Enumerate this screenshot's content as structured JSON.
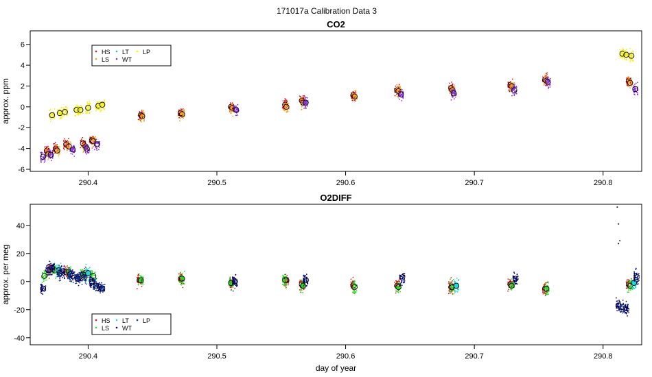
{
  "page": {
    "title": "171017a   Calibration Data 3"
  },
  "colors": {
    "HS": "#e01010",
    "LS": "#f5a020",
    "LT": "#22c2c2",
    "WT": "#8a2be2",
    "LP": "#f5f000",
    "o2_HS": "#e01010",
    "o2_LS": "#20e020",
    "o2_LT": "#22d8d8",
    "o2_WT": "#000080",
    "o2_LP": "#1030a0"
  },
  "chart_data": [
    {
      "type": "scatter",
      "title": "CO2",
      "xlabel": "",
      "ylabel": "approx. ppm",
      "xlim": [
        290.355,
        290.83
      ],
      "ylim": [
        -6.2,
        7.3
      ],
      "xticks": [
        290.4,
        290.5,
        290.6,
        290.7,
        290.8
      ],
      "xtick_labels": [
        "290.4",
        "290.5",
        "290.6",
        "290.7",
        "290.8"
      ],
      "yticks": [
        -6,
        -4,
        -2,
        0,
        2,
        4,
        6
      ],
      "ytick_labels": [
        "-6",
        "-4",
        "-2",
        "0",
        "2",
        "4",
        "6"
      ],
      "legend": {
        "placement": "top-left",
        "entries": [
          "HS",
          "LS",
          "LT",
          "WT",
          "LP"
        ]
      },
      "cloud_spread": 0.35,
      "series": [
        {
          "name": "HS",
          "x": [
            290.368,
            290.375,
            290.383,
            290.396,
            290.403,
            290.441,
            290.472,
            290.511,
            290.553,
            290.566,
            290.606,
            290.64,
            290.682,
            290.728,
            290.755,
            290.82
          ],
          "y": [
            -4.2,
            -4.0,
            -3.6,
            -3.5,
            -3.2,
            -0.8,
            -0.6,
            0.0,
            0.2,
            0.6,
            1.1,
            1.6,
            1.8,
            2.1,
            2.6,
            2.5
          ]
        },
        {
          "name": "LS",
          "x": [
            290.369,
            290.376,
            290.385,
            290.398,
            290.404,
            290.442,
            290.473,
            290.512,
            290.554,
            290.567,
            290.607,
            290.641,
            290.683,
            290.729,
            290.756,
            290.821
          ],
          "y": [
            -4.5,
            -4.2,
            -3.8,
            -3.8,
            -3.3,
            -0.9,
            -0.7,
            -0.1,
            0.0,
            0.4,
            1.0,
            1.5,
            1.6,
            2.0,
            2.5,
            2.3
          ]
        },
        {
          "name": "WT",
          "x": [
            290.365,
            290.371,
            290.388,
            290.399,
            290.407,
            290.515,
            290.569,
            290.643,
            290.684,
            290.731,
            290.757,
            290.825
          ],
          "y": [
            -4.8,
            -4.6,
            -4.1,
            -4.0,
            -3.6,
            -0.3,
            0.4,
            1.2,
            1.3,
            1.6,
            2.4,
            1.7
          ]
        },
        {
          "name": "LP",
          "x": [
            290.372,
            290.378,
            290.382,
            290.391,
            290.394,
            290.4,
            290.408,
            290.411,
            290.815,
            290.818,
            290.822
          ],
          "y": [
            -0.8,
            -0.6,
            -0.5,
            -0.3,
            -0.3,
            -0.1,
            0.1,
            0.2,
            5.1,
            5.0,
            4.9
          ]
        }
      ]
    },
    {
      "type": "scatter",
      "title": "O2DIFF",
      "xlabel": "day of year",
      "ylabel": "approx. per meg",
      "xlim": [
        290.355,
        290.83
      ],
      "ylim": [
        -45,
        55
      ],
      "xticks": [
        290.4,
        290.5,
        290.6,
        290.7,
        290.8
      ],
      "xtick_labels": [
        "290.4",
        "290.5",
        "290.6",
        "290.7",
        "290.8"
      ],
      "yticks": [
        -40,
        -20,
        0,
        20,
        40
      ],
      "ytick_labels": [
        "-40",
        "-20",
        "0",
        "20",
        "40"
      ],
      "legend": {
        "placement": "bottom-left",
        "entries": [
          "HS",
          "LS",
          "LT",
          "WT",
          "LP"
        ]
      },
      "cloud_spread": 3.0,
      "series": [
        {
          "name": "HS",
          "x": [
            290.37,
            290.383,
            290.398,
            290.44,
            290.472,
            290.512,
            290.554,
            290.566,
            290.606,
            290.64,
            290.682,
            290.728,
            290.755,
            290.82
          ],
          "y": [
            8,
            7,
            6,
            1,
            2,
            -1,
            1,
            -2,
            -3,
            -3,
            -4,
            -2,
            -5,
            -2
          ]
        },
        {
          "name": "LS",
          "x": [
            290.366,
            290.374,
            290.385,
            290.396,
            290.404,
            290.441,
            290.473,
            290.511,
            290.553,
            290.567,
            290.607,
            290.641,
            290.683,
            290.729,
            290.756,
            290.821
          ],
          "y": [
            4,
            8,
            7,
            5,
            4,
            1,
            2,
            -1,
            1,
            -3,
            -4,
            -4,
            -4,
            -3,
            -5,
            -3
          ]
        },
        {
          "name": "LT",
          "x": [
            290.377,
            290.4,
            290.686,
            290.824
          ],
          "y": [
            8,
            6,
            -3,
            -1
          ]
        },
        {
          "name": "WT",
          "x": [
            290.365,
            290.372,
            290.38,
            290.388,
            290.393,
            290.403,
            290.409,
            290.514,
            290.569,
            290.644,
            290.732,
            290.812,
            290.818,
            290.826
          ],
          "y": [
            -5,
            10,
            7,
            4,
            3,
            0,
            -4,
            0,
            1,
            3,
            2,
            -17,
            -20,
            3
          ]
        },
        {
          "name": "LP",
          "x": [
            290.369,
            290.378,
            290.386,
            290.392,
            290.397,
            290.406,
            290.411,
            290.815
          ],
          "y": [
            8,
            6,
            5,
            2,
            3,
            -3,
            -5,
            -18
          ]
        }
      ],
      "outliers": {
        "name": "WT",
        "x": [
          290.811,
          290.812,
          290.813,
          290.812
        ],
        "y": [
          53,
          41,
          29,
          27
        ]
      }
    }
  ]
}
